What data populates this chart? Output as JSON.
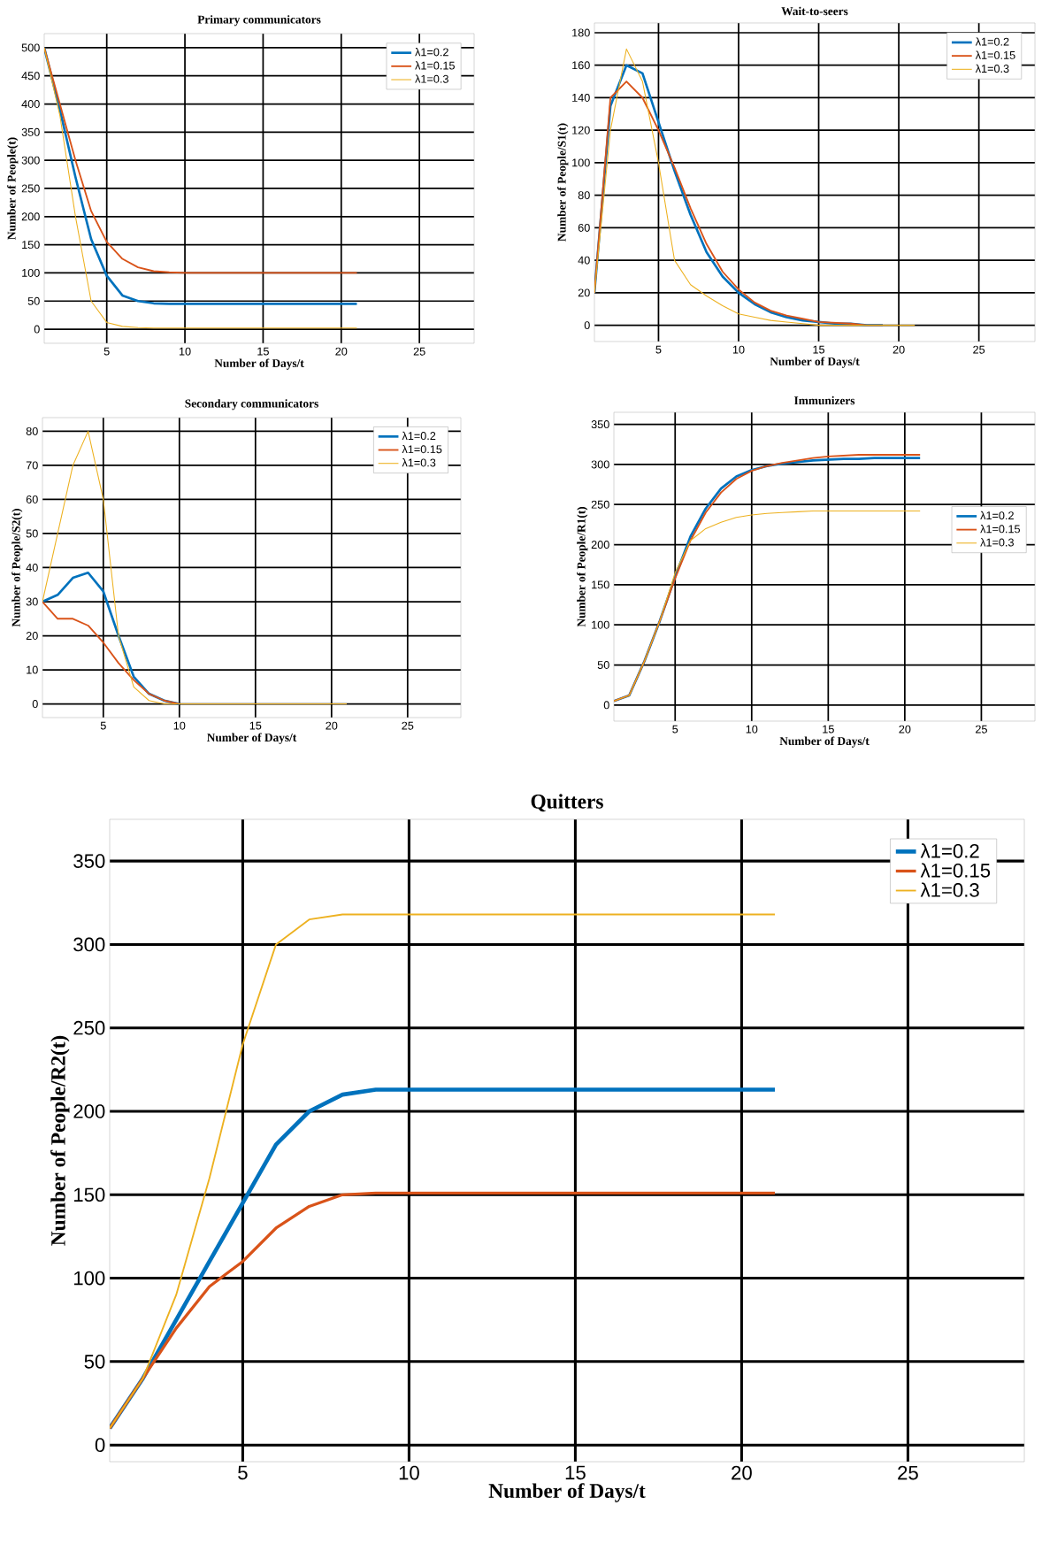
{
  "chart_data": [
    {
      "type": "line",
      "title": "Primary communicators",
      "xlabel": "Number of Days/t",
      "ylabel": "Number of People(t)",
      "grid": true,
      "legend": "top right",
      "x": [
        1,
        2,
        3,
        4,
        5,
        6,
        7,
        8,
        9,
        10,
        11,
        12,
        13,
        14,
        15,
        16,
        17,
        18,
        19,
        20,
        21
      ],
      "xlim": [
        1,
        28.5
      ],
      "xticks": [
        5,
        10,
        15,
        20,
        25
      ],
      "ylim": [
        -25,
        525
      ],
      "yticks": [
        0,
        50,
        100,
        150,
        200,
        250,
        300,
        350,
        400,
        450,
        500
      ],
      "series": [
        {
          "name": "λ1=0.2",
          "color": "#0072bd",
          "values": [
            500,
            390,
            270,
            160,
            95,
            60,
            50,
            46,
            45,
            45,
            45,
            45,
            45,
            45,
            45,
            45,
            45,
            45,
            45,
            45,
            45
          ]
        },
        {
          "name": "λ1=0.15",
          "color": "#d95319",
          "values": [
            500,
            400,
            300,
            210,
            155,
            125,
            110,
            103,
            101,
            100,
            100,
            100,
            100,
            100,
            100,
            100,
            100,
            100,
            100,
            100,
            100
          ]
        },
        {
          "name": "λ1=0.3",
          "color": "#edb120",
          "values": [
            500,
            380,
            200,
            50,
            12,
            5,
            3,
            2,
            2,
            2,
            2,
            2,
            2,
            2,
            2,
            2,
            2,
            2,
            2,
            2,
            2
          ]
        }
      ]
    },
    {
      "type": "line",
      "title": "Wait-to-seers",
      "xlabel": "Number of Days/t",
      "ylabel": "Number of People/S1(t)",
      "grid": true,
      "legend": "top right",
      "x": [
        1,
        2,
        3,
        4,
        5,
        6,
        7,
        8,
        9,
        10,
        11,
        12,
        13,
        14,
        15,
        16,
        17,
        18,
        19,
        20,
        21
      ],
      "xlim": [
        1,
        28.5
      ],
      "xticks": [
        5,
        10,
        15,
        20,
        25
      ],
      "ylim": [
        -10,
        186
      ],
      "yticks": [
        0,
        20,
        40,
        60,
        80,
        100,
        120,
        140,
        160,
        180
      ],
      "series": [
        {
          "name": "λ1=0.2",
          "color": "#0072bd",
          "values": [
            20,
            135,
            160,
            155,
            125,
            95,
            68,
            45,
            30,
            20,
            13,
            8,
            5,
            3,
            2,
            1,
            1,
            0,
            0,
            null,
            null
          ]
        },
        {
          "name": "λ1=0.15",
          "color": "#d95319",
          "values": [
            20,
            140,
            150,
            140,
            120,
            97,
            72,
            50,
            33,
            22,
            14,
            9,
            6,
            4,
            2,
            1.5,
            1,
            0,
            0,
            null,
            null
          ]
        },
        {
          "name": "λ1=0.3",
          "color": "#edb120",
          "values": [
            20,
            120,
            170,
            150,
            100,
            40,
            25,
            18,
            12,
            7,
            5,
            3,
            2,
            1,
            0,
            0,
            0,
            0,
            0,
            0,
            0
          ]
        }
      ]
    },
    {
      "type": "line",
      "title": "Secondary communicators",
      "xlabel": "Number of Days/t",
      "ylabel": "Number of People/S2(t)",
      "grid": true,
      "legend": "top right",
      "x": [
        1,
        2,
        3,
        4,
        5,
        6,
        7,
        8,
        9,
        10,
        11,
        12,
        13,
        14,
        15,
        16,
        17,
        18,
        19,
        20,
        21
      ],
      "xlim": [
        1,
        28.5
      ],
      "xticks": [
        5,
        10,
        15,
        20,
        25
      ],
      "ylim": [
        -4,
        84
      ],
      "yticks": [
        0,
        10,
        20,
        30,
        40,
        50,
        60,
        70,
        80
      ],
      "series": [
        {
          "name": "λ1=0.2",
          "color": "#0072bd",
          "values": [
            30,
            32,
            37,
            38.5,
            33,
            20,
            8,
            3,
            1,
            0,
            null,
            null,
            null,
            null,
            null,
            null,
            null,
            null,
            null,
            null,
            null
          ]
        },
        {
          "name": "λ1=0.15",
          "color": "#d95319",
          "values": [
            30,
            25,
            25,
            23,
            18,
            12,
            7,
            3,
            1,
            0,
            null,
            null,
            null,
            null,
            null,
            null,
            null,
            null,
            null,
            null,
            null
          ]
        },
        {
          "name": "λ1=0.3",
          "color": "#edb120",
          "values": [
            30,
            50,
            70,
            80,
            60,
            20,
            5,
            1,
            0,
            0,
            0,
            0,
            0,
            0,
            0,
            0,
            0,
            0,
            0,
            0,
            0
          ]
        }
      ]
    },
    {
      "type": "line",
      "title": "Immunizers",
      "xlabel": "Number of Days/t",
      "ylabel": "Number of People/R1(t)",
      "grid": true,
      "legend": "right",
      "x": [
        1,
        2,
        3,
        4,
        5,
        6,
        7,
        8,
        9,
        10,
        11,
        12,
        13,
        14,
        15,
        16,
        17,
        18,
        19,
        20,
        21
      ],
      "xlim": [
        1,
        28.5
      ],
      "xticks": [
        5,
        10,
        15,
        20,
        25
      ],
      "ylim": [
        -20,
        365
      ],
      "yticks": [
        0,
        50,
        100,
        150,
        200,
        250,
        300,
        350
      ],
      "series": [
        {
          "name": "λ1=0.2",
          "color": "#0072bd",
          "values": [
            5,
            12,
            55,
            105,
            160,
            210,
            245,
            270,
            285,
            293,
            298,
            301,
            303,
            305,
            306,
            307,
            307,
            308,
            308,
            308,
            308
          ]
        },
        {
          "name": "λ1=0.15",
          "color": "#d95319",
          "values": [
            5,
            12,
            55,
            105,
            158,
            205,
            240,
            265,
            282,
            292,
            298,
            302,
            305,
            308,
            310,
            311,
            312,
            312,
            312,
            312,
            312
          ]
        },
        {
          "name": "λ1=0.3",
          "color": "#edb120",
          "values": [
            5,
            12,
            55,
            105,
            165,
            205,
            220,
            228,
            234,
            237,
            239,
            240,
            241,
            242,
            242,
            242,
            242,
            242,
            242,
            242,
            242
          ]
        }
      ]
    },
    {
      "type": "line",
      "title": "Quitters",
      "xlabel": "Number of Days/t",
      "ylabel": "Number of People/R2(t)",
      "grid": true,
      "legend": "top right",
      "x": [
        1,
        2,
        3,
        4,
        5,
        6,
        7,
        8,
        9,
        10,
        11,
        12,
        13,
        14,
        15,
        16,
        17,
        18,
        19,
        20,
        21
      ],
      "xlim": [
        1,
        28.5
      ],
      "xticks": [
        5,
        10,
        15,
        20,
        25
      ],
      "ylim": [
        -10,
        375
      ],
      "yticks": [
        0,
        50,
        100,
        150,
        200,
        250,
        300,
        350
      ],
      "series": [
        {
          "name": "λ1=0.2",
          "color": "#0072bd",
          "values": [
            10,
            40,
            75,
            110,
            145,
            180,
            200,
            210,
            213,
            213,
            213,
            213,
            213,
            213,
            213,
            213,
            213,
            213,
            213,
            213,
            213
          ]
        },
        {
          "name": "λ1=0.15",
          "color": "#d95319",
          "values": [
            10,
            40,
            70,
            95,
            110,
            130,
            143,
            150,
            151,
            151,
            151,
            151,
            151,
            151,
            151,
            151,
            151,
            151,
            151,
            151,
            151
          ]
        },
        {
          "name": "λ1=0.3",
          "color": "#edb120",
          "values": [
            10,
            40,
            90,
            160,
            240,
            300,
            315,
            318,
            318,
            318,
            318,
            318,
            318,
            318,
            318,
            318,
            318,
            318,
            318,
            318,
            318
          ]
        }
      ]
    }
  ]
}
